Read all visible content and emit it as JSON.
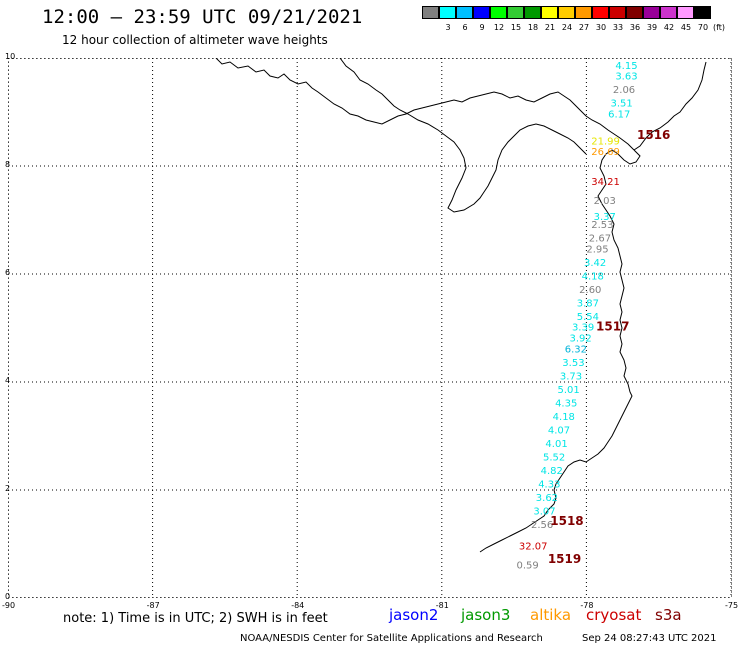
{
  "header": {
    "title": "12:00 – 23:59 UTC 09/21/2021",
    "subtitle": "12 hour collection of altimeter wave heights"
  },
  "legend": {
    "unit": "(ft)",
    "bins": [
      {
        "label": "",
        "color": "#808080"
      },
      {
        "label": "3",
        "color": "#00ffff"
      },
      {
        "label": "6",
        "color": "#00c0ff"
      },
      {
        "label": "9",
        "color": "#0000ff"
      },
      {
        "label": "12",
        "color": "#00ff00"
      },
      {
        "label": "15",
        "color": "#33cc33"
      },
      {
        "label": "18",
        "color": "#009900"
      },
      {
        "label": "21",
        "color": "#ffff00"
      },
      {
        "label": "24",
        "color": "#ffcc00"
      },
      {
        "label": "27",
        "color": "#ff9900"
      },
      {
        "label": "30",
        "color": "#ff0000"
      },
      {
        "label": "33",
        "color": "#cc0000"
      },
      {
        "label": "36",
        "color": "#800000"
      },
      {
        "label": "39",
        "color": "#990099"
      },
      {
        "label": "42",
        "color": "#cc33cc"
      },
      {
        "label": "45",
        "color": "#ff99ff"
      },
      {
        "label": "70",
        "color": "#000000"
      }
    ]
  },
  "axes": {
    "lon_range": [
      -90,
      -75
    ],
    "lat_range": [
      0,
      10
    ],
    "lon_ticks": [
      "-90",
      "-87",
      "-84",
      "-81",
      "-78",
      "-75"
    ],
    "lat_ticks": [
      "10",
      "8",
      "6",
      "4",
      "2",
      "0"
    ]
  },
  "observations": [
    {
      "text": "4.15",
      "lon": -77.4,
      "lat": 9.8,
      "color": "#00e5e5"
    },
    {
      "text": "3.63",
      "lon": -77.4,
      "lat": 9.6,
      "color": "#00e5e5"
    },
    {
      "text": "2.06",
      "lon": -77.45,
      "lat": 9.35,
      "color": "#808080"
    },
    {
      "text": "3.51",
      "lon": -77.5,
      "lat": 9.1,
      "color": "#00e5e5"
    },
    {
      "text": "6.17",
      "lon": -77.55,
      "lat": 8.9,
      "color": "#00e5e5"
    },
    {
      "text": "21.99",
      "lon": -77.9,
      "lat": 8.4,
      "color": "#e6e600"
    },
    {
      "text": "26.69",
      "lon": -77.9,
      "lat": 8.2,
      "color": "#ff9900"
    },
    {
      "text": "34.21",
      "lon": -77.9,
      "lat": 7.65,
      "color": "#cc0000"
    },
    {
      "text": "2.03",
      "lon": -77.85,
      "lat": 7.3,
      "color": "#808080"
    },
    {
      "text": "3.37",
      "lon": -77.85,
      "lat": 7.0,
      "color": "#00e5e5"
    },
    {
      "text": "2.53",
      "lon": -77.9,
      "lat": 6.85,
      "color": "#808080"
    },
    {
      "text": "2.67",
      "lon": -77.95,
      "lat": 6.6,
      "color": "#808080"
    },
    {
      "text": "2.95",
      "lon": -78.0,
      "lat": 6.4,
      "color": "#808080"
    },
    {
      "text": "3.42",
      "lon": -78.05,
      "lat": 6.15,
      "color": "#00e5e5"
    },
    {
      "text": "4.18",
      "lon": -78.1,
      "lat": 5.9,
      "color": "#00e5e5"
    },
    {
      "text": "2.60",
      "lon": -78.15,
      "lat": 5.65,
      "color": "#808080"
    },
    {
      "text": "3.87",
      "lon": -78.2,
      "lat": 5.4,
      "color": "#00e5e5"
    },
    {
      "text": "5.54",
      "lon": -78.2,
      "lat": 5.15,
      "color": "#00e5e5"
    },
    {
      "text": "3.39",
      "lon": -78.3,
      "lat": 4.95,
      "color": "#00e5e5"
    },
    {
      "text": "3.92",
      "lon": -78.35,
      "lat": 4.75,
      "color": "#00e5e5"
    },
    {
      "text": "6.32",
      "lon": -78.45,
      "lat": 4.55,
      "color": "#00b3d9"
    },
    {
      "text": "3.53",
      "lon": -78.5,
      "lat": 4.3,
      "color": "#00e5e5"
    },
    {
      "text": "3.73",
      "lon": -78.55,
      "lat": 4.05,
      "color": "#00e5e5"
    },
    {
      "text": "5.01",
      "lon": -78.6,
      "lat": 3.8,
      "color": "#00e5e5"
    },
    {
      "text": "4.35",
      "lon": -78.65,
      "lat": 3.55,
      "color": "#00e5e5"
    },
    {
      "text": "4.18",
      "lon": -78.7,
      "lat": 3.3,
      "color": "#00e5e5"
    },
    {
      "text": "4.07",
      "lon": -78.8,
      "lat": 3.05,
      "color": "#00e5e5"
    },
    {
      "text": "4.01",
      "lon": -78.85,
      "lat": 2.8,
      "color": "#00e5e5"
    },
    {
      "text": "5.52",
      "lon": -78.9,
      "lat": 2.55,
      "color": "#00e5e5"
    },
    {
      "text": "4.82",
      "lon": -78.95,
      "lat": 2.3,
      "color": "#00e5e5"
    },
    {
      "text": "4.33",
      "lon": -79.0,
      "lat": 2.05,
      "color": "#00e5e5"
    },
    {
      "text": "3.62",
      "lon": -79.05,
      "lat": 1.8,
      "color": "#00e5e5"
    },
    {
      "text": "3.07",
      "lon": -79.1,
      "lat": 1.55,
      "color": "#00e5e5"
    },
    {
      "text": "2.56",
      "lon": -79.15,
      "lat": 1.3,
      "color": "#808080"
    },
    {
      "text": "32.07",
      "lon": -79.4,
      "lat": 0.9,
      "color": "#cc0000"
    },
    {
      "text": "0.59",
      "lon": -79.45,
      "lat": 0.55,
      "color": "#808080"
    }
  ],
  "orbit_labels": [
    {
      "text": "1516",
      "lon": -76.95,
      "lat": 8.5
    },
    {
      "text": "1517",
      "lon": -77.8,
      "lat": 4.95
    },
    {
      "text": "1518",
      "lon": -78.75,
      "lat": 1.35
    },
    {
      "text": "1519",
      "lon": -78.8,
      "lat": 0.65
    }
  ],
  "footer": {
    "note": "note: 1) Time is in UTC; 2) SWH is in feet",
    "satellites": [
      {
        "name": "jason2",
        "color": "#0000ff"
      },
      {
        "name": "jason3",
        "color": "#009900"
      },
      {
        "name": "altika",
        "color": "#ff9900"
      },
      {
        "name": "cryosat",
        "color": "#cc0000"
      },
      {
        "name": "s3a",
        "color": "#800000"
      }
    ],
    "credit": "NOAA/NESDIS Center for Satellite Applications and Research",
    "timestamp": "Sep 24 08:27:43 UTC 2021"
  },
  "colors": {
    "orbit_label": "#800000",
    "coast": "#000000",
    "grid": "#000000"
  }
}
